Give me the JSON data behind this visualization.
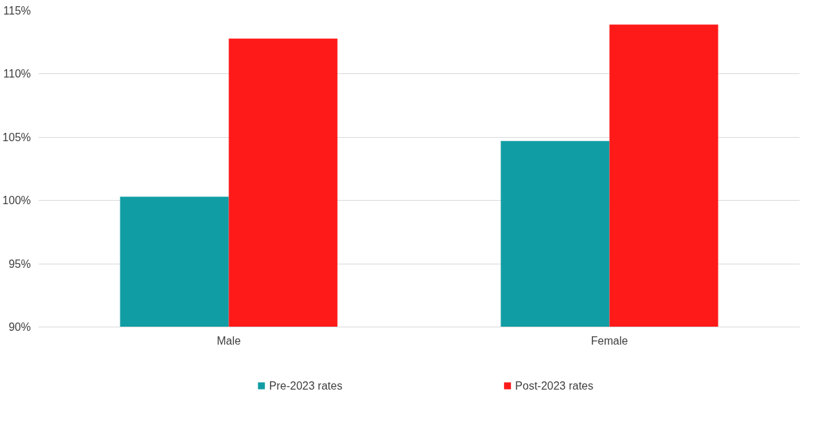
{
  "chart_data": {
    "type": "bar",
    "categories": [
      "Male",
      "Female"
    ],
    "series": [
      {
        "name": "Pre-2023 rates",
        "color": "#119da4",
        "values": [
          100.3,
          104.7
        ]
      },
      {
        "name": "Post-2023 rates",
        "color": "#ff1a1a",
        "values": [
          112.8,
          113.9
        ]
      }
    ],
    "ylim": [
      90,
      115
    ],
    "yticks": [
      {
        "value": 90,
        "label": "90%"
      },
      {
        "value": 95,
        "label": "95%"
      },
      {
        "value": 100,
        "label": "100%"
      },
      {
        "value": 105,
        "label": "105%"
      },
      {
        "value": 110,
        "label": "110%"
      },
      {
        "value": 115,
        "label": "115%"
      }
    ],
    "grid": "y",
    "legend": "bottom"
  }
}
